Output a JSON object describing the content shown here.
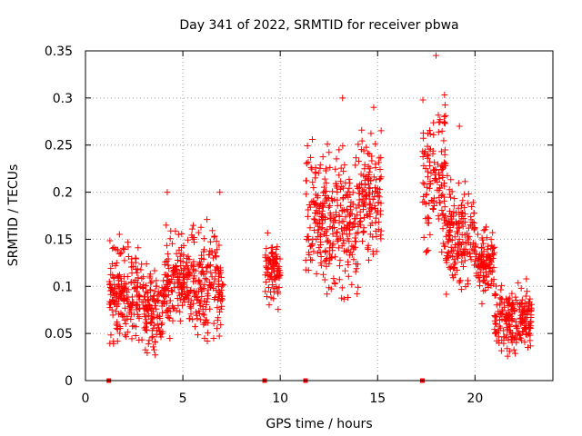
{
  "chart_data": {
    "type": "scatter",
    "title": "Day 341 of 2022, SRMTID for receiver pbwa",
    "xlabel": "GPS time / hours",
    "ylabel": "SRMTID / TECUs",
    "xlim": [
      0,
      24
    ],
    "ylim": [
      0,
      0.35
    ],
    "xticks": [
      "0",
      "5",
      "10",
      "15",
      "20"
    ],
    "xtick_values": [
      0,
      5,
      10,
      15,
      20
    ],
    "yticks": [
      "0",
      "0.05",
      "0.1",
      "0.15",
      "0.2",
      "0.25",
      "0.3",
      "0.35"
    ],
    "ytick_values": [
      0,
      0.05,
      0.1,
      0.15,
      0.2,
      0.25,
      0.3,
      0.35
    ],
    "grid": true,
    "marker": "+",
    "color": "#ff0000",
    "zero_markers_x": [
      1.2,
      9.2,
      11.3,
      17.3
    ],
    "clusters": [
      {
        "x_start": 1.2,
        "x_end": 3.0,
        "y_low": 0.04,
        "y_high": 0.15
      },
      {
        "x_start": 3.0,
        "x_end": 4.0,
        "y_low": 0.03,
        "y_high": 0.12
      },
      {
        "x_start": 4.0,
        "x_end": 7.1,
        "y_low": 0.05,
        "y_high": 0.16
      },
      {
        "x_start": 9.2,
        "x_end": 10.0,
        "y_low": 0.08,
        "y_high": 0.15
      },
      {
        "x_start": 11.3,
        "x_end": 12.5,
        "y_low": 0.1,
        "y_high": 0.25
      },
      {
        "x_start": 12.5,
        "x_end": 14.0,
        "y_low": 0.09,
        "y_high": 0.24
      },
      {
        "x_start": 14.0,
        "x_end": 15.2,
        "y_low": 0.13,
        "y_high": 0.26
      },
      {
        "x_start": 17.3,
        "x_end": 18.5,
        "y_low": 0.14,
        "y_high": 0.3
      },
      {
        "x_start": 18.5,
        "x_end": 20.0,
        "y_low": 0.1,
        "y_high": 0.21
      },
      {
        "x_start": 20.0,
        "x_end": 21.0,
        "y_low": 0.09,
        "y_high": 0.16
      },
      {
        "x_start": 21.0,
        "x_end": 22.9,
        "y_low": 0.03,
        "y_high": 0.1
      }
    ],
    "peaks": [
      {
        "x": 4.2,
        "y": 0.2
      },
      {
        "x": 6.9,
        "y": 0.2
      },
      {
        "x": 13.2,
        "y": 0.3
      },
      {
        "x": 14.8,
        "y": 0.29
      },
      {
        "x": 18.0,
        "y": 0.345
      },
      {
        "x": 19.2,
        "y": 0.27
      }
    ]
  }
}
